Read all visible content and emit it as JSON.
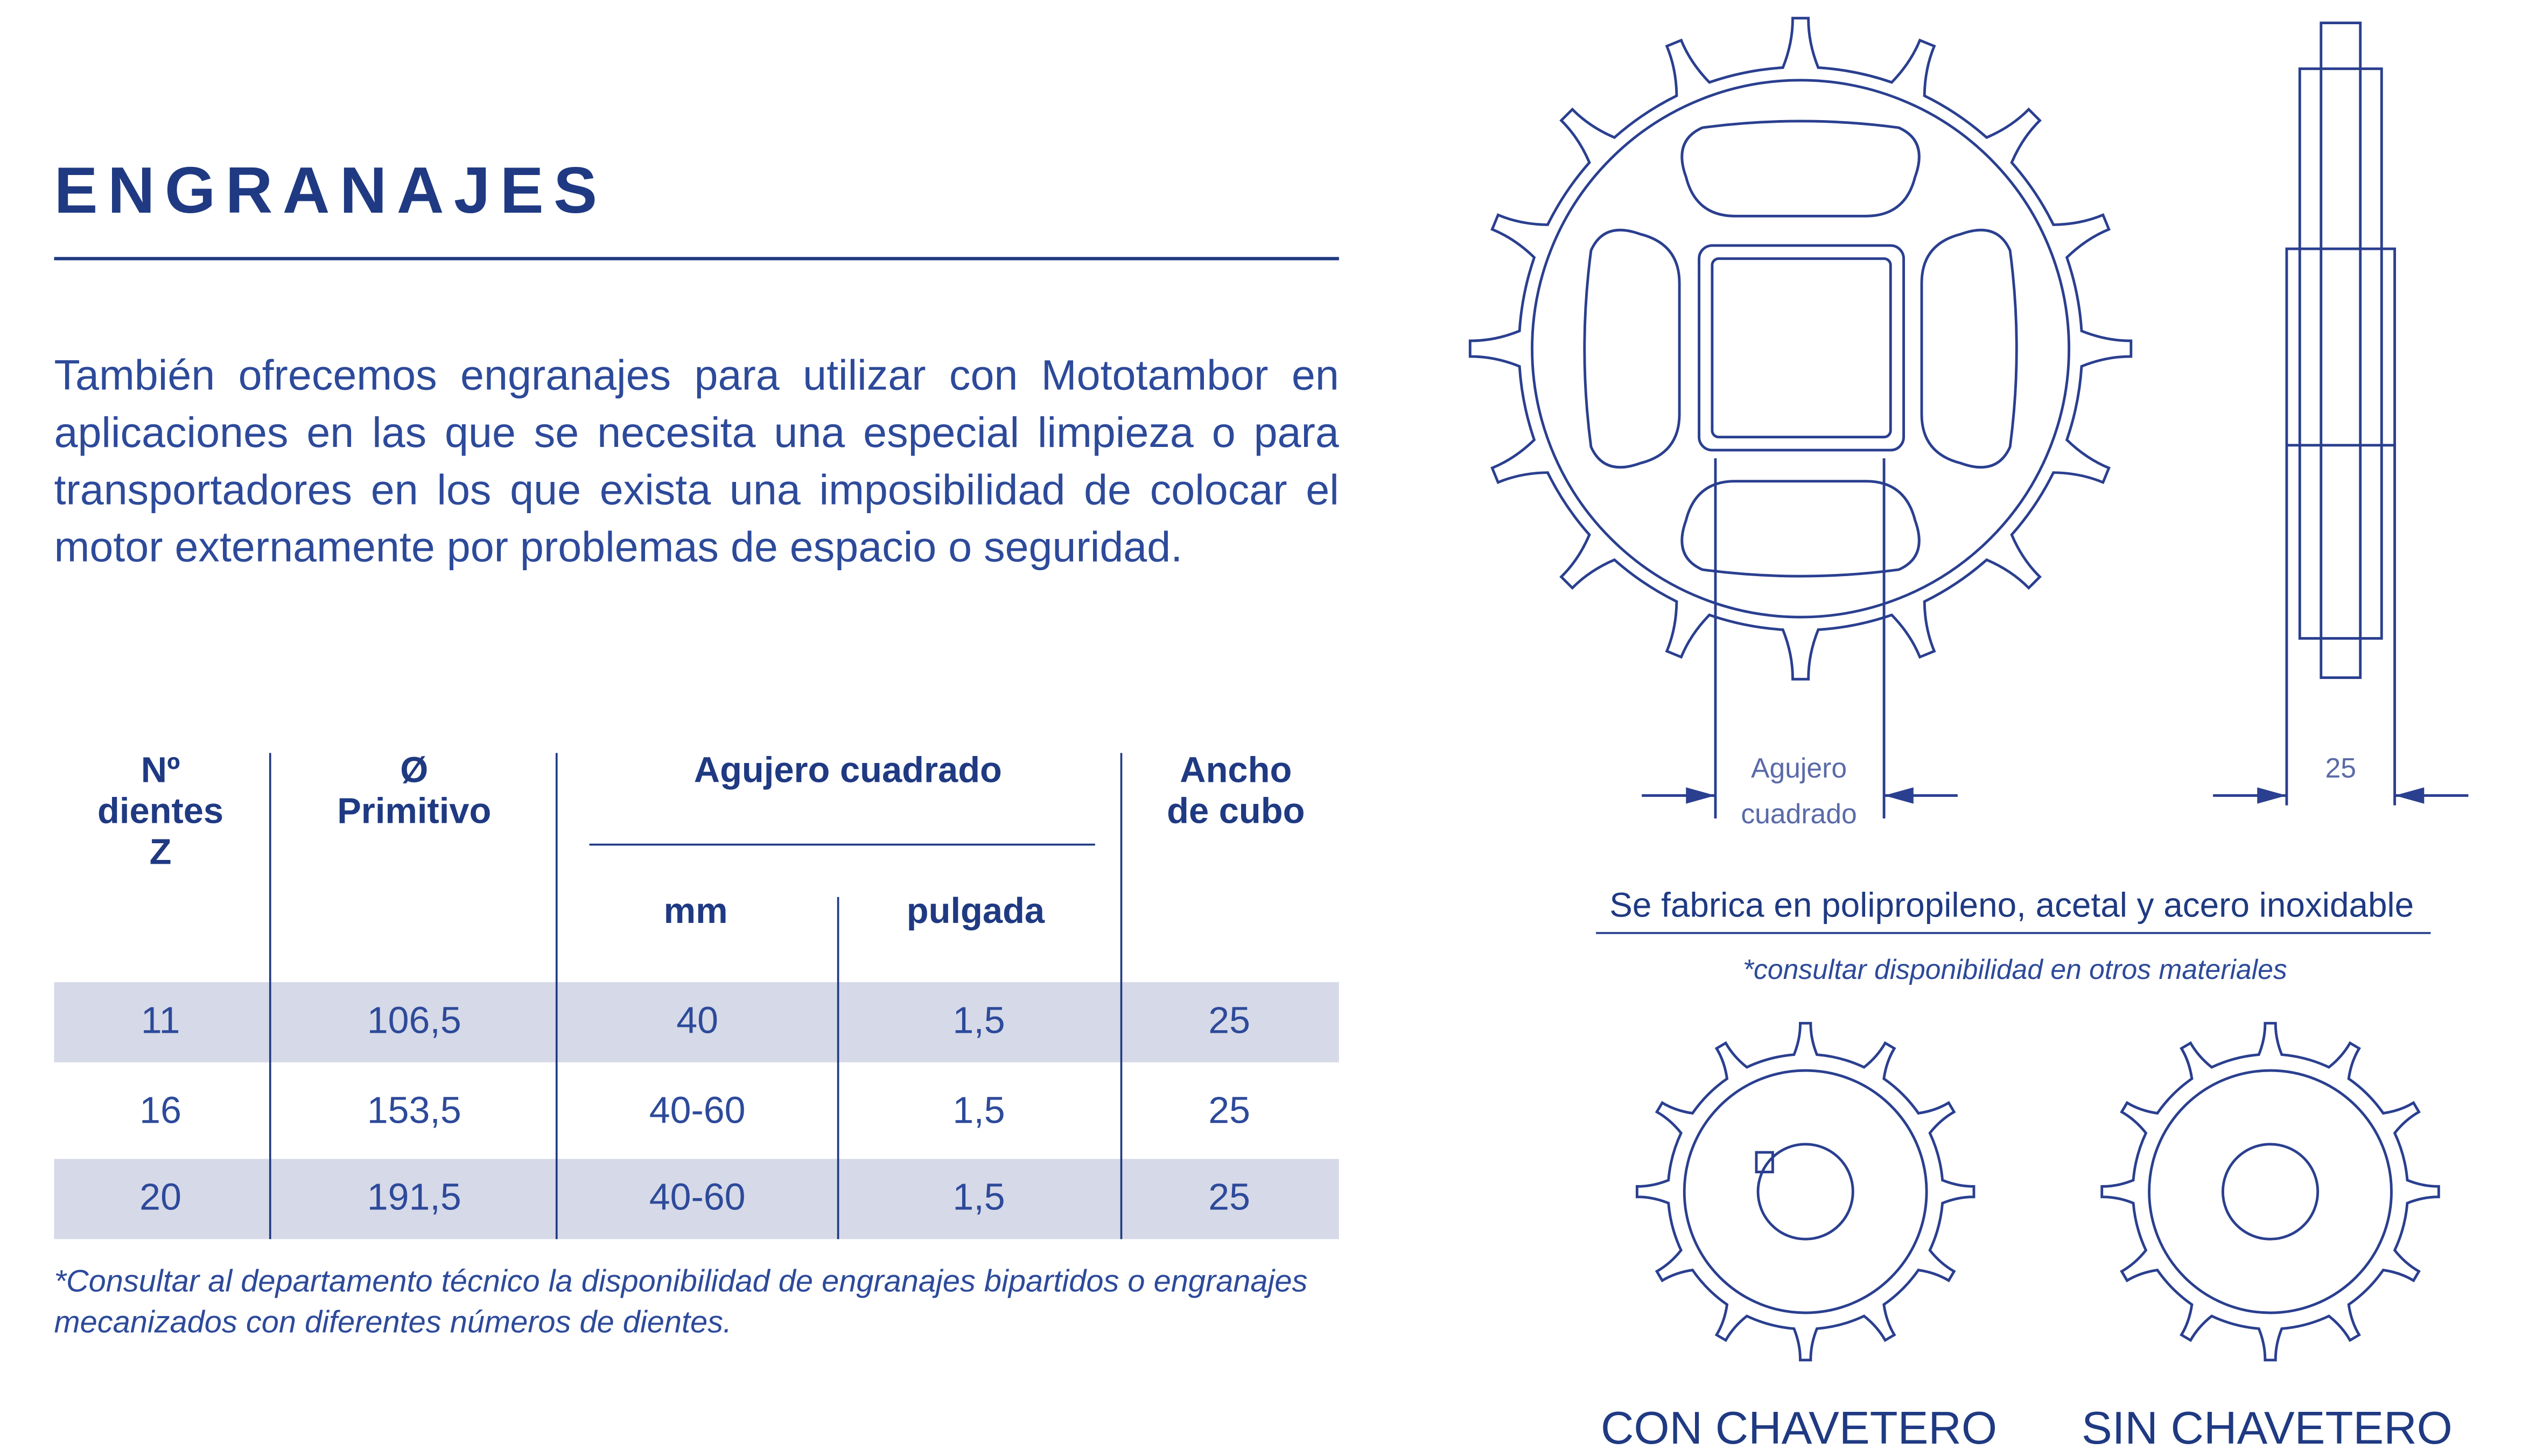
{
  "header": {
    "title": "ENGRANAJES"
  },
  "intro": "También ofrecemos engranajes para utilizar con Mototambor en aplicaciones en las que se necesita una especial limpieza o para transportadores en los que exista una imposibilidad de colocar el motor externamente por problemas de espacio o seguridad.",
  "table": {
    "headers": {
      "teeth": [
        "Nº",
        "dientes",
        "Z"
      ],
      "diameter": [
        "Ø",
        "Primitivo"
      ],
      "hole": "Agujero cuadrado",
      "mm": "mm",
      "inch": "pulgada",
      "hub": [
        "Ancho",
        "de cubo"
      ]
    },
    "rows": [
      [
        "11",
        "106,5",
        "40",
        "1,5",
        "25"
      ],
      [
        "16",
        "153,5",
        "40-60",
        "1,5",
        "25"
      ],
      [
        "20",
        "191,5",
        "40-60",
        "1,5",
        "25"
      ]
    ]
  },
  "footnote": "*Consultar al departamento técnico la disponibilidad de engranajes bipartidos o engranajes mecanizados con diferentes números de dientes.",
  "diagram": {
    "hole_label": [
      "Agujero",
      "cuadrado"
    ],
    "width_label": "25",
    "materials": "Se fabrica en polipropileno, acetal y acero inoxidable",
    "materials_note": "*consultar disponibilidad en otros materiales",
    "caption_keyed": "CON CHAVETERO",
    "caption_plain": "SIN CHAVETERO"
  }
}
